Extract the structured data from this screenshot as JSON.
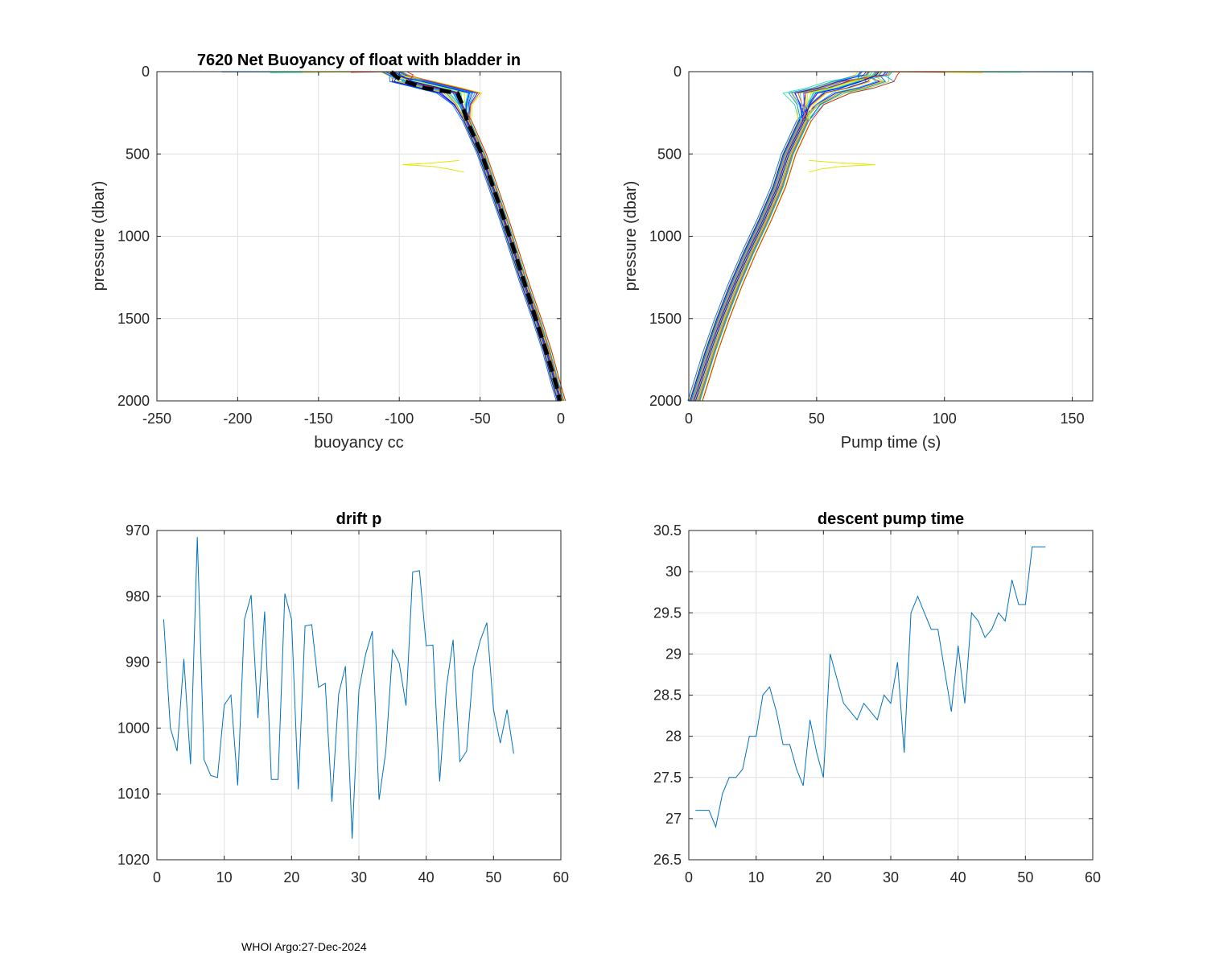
{
  "footer": "WHOI Argo:27-Dec-2024",
  "chart_data": [
    {
      "type": "line",
      "id": "buoy",
      "title": "7620 Net Buoyancy of float with bladder in",
      "xlabel": "buoyancy cc",
      "ylabel": "pressure (dbar)",
      "xlim": [
        -250,
        0
      ],
      "ylim": [
        0,
        2000
      ],
      "y_reversed": true,
      "xticks": [
        -250,
        -200,
        -150,
        -100,
        -50,
        0
      ],
      "xtick_labels": [
        "-250",
        "-200",
        "-150",
        "-100",
        "-50",
        "0"
      ],
      "yticks": [
        0,
        500,
        1000,
        1500,
        2000
      ],
      "ytick_labels": [
        "0",
        "500",
        "1000",
        "1500",
        "2000"
      ],
      "grid": true,
      "profile_colors": [
        "#0000ff",
        "#0a1eff",
        "#1446ff",
        "#0066ff",
        "#0090ff",
        "#00b4ff",
        "#00d2e6",
        "#28e0a0",
        "#78e650",
        "#c8f000",
        "#ffd200",
        "#ff9600",
        "#ff5000",
        "#e61e00"
      ],
      "base_profile": {
        "p": [
          0,
          20,
          60,
          100,
          130,
          200,
          300,
          500,
          700,
          900,
          1100,
          1300,
          1500,
          1700,
          1900,
          2000
        ],
        "b": [
          -105,
          -101,
          -92,
          -75,
          -63,
          -61,
          -58,
          -49,
          -42,
          -35,
          -28.5,
          -22,
          -15,
          -8.5,
          -3,
          0
        ]
      },
      "mean_profile": {
        "name": "mean",
        "color": "#000000",
        "style": "dashed",
        "p": [
          0,
          30,
          60,
          100,
          130,
          200,
          300,
          500,
          700,
          900,
          1100,
          1300,
          1500,
          1700,
          1900,
          2000
        ],
        "b": [
          -105,
          -102,
          -96,
          -84,
          -64,
          -61,
          -58,
          -49,
          -42,
          -35,
          -28.5,
          -22,
          -15.5,
          -9,
          -3,
          -0.5
        ]
      },
      "surface_spikes": [
        {
          "p": 2,
          "b": -210
        },
        {
          "p": 6,
          "b": -180
        },
        {
          "p": 3,
          "b": -160
        },
        {
          "p": 4,
          "b": -130
        }
      ],
      "yellow_outlier": {
        "color": "#e6e600",
        "p": [
          540,
          555,
          565,
          575,
          590,
          610
        ],
        "b": [
          -63,
          -80,
          -98,
          -80,
          -70,
          -60
        ]
      }
    },
    {
      "type": "line",
      "id": "pump",
      "title": "",
      "xlabel": "Pump time (s)",
      "ylabel": "pressure (dbar)",
      "xlim": [
        0,
        158
      ],
      "ylim": [
        0,
        2000
      ],
      "y_reversed": true,
      "xticks": [
        0,
        50,
        100,
        150
      ],
      "xtick_labels": [
        "0",
        "50",
        "100",
        "150"
      ],
      "yticks": [
        0,
        500,
        1000,
        1500,
        2000
      ],
      "ytick_labels": [
        "0",
        "500",
        "1000",
        "1500",
        "2000"
      ],
      "grid": true,
      "base_profile": {
        "p": [
          0,
          20,
          60,
          100,
          130,
          200,
          300,
          500,
          700,
          900,
          1100,
          1300,
          1500,
          1700,
          1900,
          2000
        ],
        "t": [
          73,
          72,
          67,
          59,
          50,
          47,
          45,
          39,
          35,
          29.5,
          23.5,
          18,
          13,
          8.5,
          4.5,
          2.5
        ]
      },
      "surface_spikes": [
        {
          "p": 2,
          "t": 158
        },
        {
          "p": 4,
          "t": 130
        },
        {
          "p": 6,
          "t": 115
        },
        {
          "p": 3,
          "t": 100
        }
      ],
      "yellow_outlier": {
        "color": "#e6e600",
        "p": [
          540,
          555,
          565,
          575,
          590,
          610
        ],
        "t": [
          47,
          60,
          73,
          60,
          52,
          47
        ]
      }
    },
    {
      "type": "line",
      "id": "drift",
      "title": "drift p",
      "xlabel": "",
      "ylabel": "",
      "xlim": [
        0,
        60
      ],
      "ylim": [
        970,
        1020
      ],
      "y_reversed": true,
      "xticks": [
        0,
        10,
        20,
        30,
        40,
        50,
        60
      ],
      "xtick_labels": [
        "0",
        "10",
        "20",
        "30",
        "40",
        "50",
        "60"
      ],
      "yticks": [
        970,
        980,
        990,
        1000,
        1010,
        1020
      ],
      "ytick_labels": [
        "970",
        "980",
        "990",
        "1000",
        "1010",
        "1020"
      ],
      "grid": true,
      "series": [
        {
          "name": "drift p",
          "color": "#0072bd",
          "x": [
            1,
            2,
            3,
            4,
            5,
            6,
            7,
            8,
            9,
            10,
            11,
            12,
            13,
            14,
            15,
            16,
            17,
            18,
            19,
            20,
            21,
            22,
            23,
            24,
            25,
            26,
            27,
            28,
            29,
            30,
            31,
            32,
            33,
            34,
            35,
            36,
            37,
            38,
            39,
            40,
            41,
            42,
            43,
            44,
            45,
            46,
            47,
            48,
            49,
            50,
            51,
            52,
            53
          ],
          "y": [
            983.5,
            1000,
            1003.5,
            989.5,
            1005.5,
            971,
            1004.8,
            1007.2,
            1007.5,
            996.5,
            995,
            1008.7,
            983.5,
            979.8,
            998.5,
            982.3,
            1007.8,
            1007.8,
            979.6,
            983.5,
            1009.3,
            984.5,
            984.3,
            993.8,
            993.2,
            1011.2,
            994.8,
            990.6,
            1016.8,
            994.3,
            988.8,
            985.3,
            1010.9,
            1003.5,
            988.1,
            990.2,
            996.6,
            976.3,
            976.1,
            987.5,
            987.4,
            1008.1,
            993.8,
            986.6,
            1005.1,
            1003.5,
            990.9,
            986.8,
            984,
            997.2,
            1002.3,
            997.2,
            1003.9
          ]
        }
      ]
    },
    {
      "type": "line",
      "id": "descent",
      "title": "descent pump time",
      "xlabel": "",
      "ylabel": "",
      "xlim": [
        0,
        60
      ],
      "ylim": [
        26.5,
        30.5
      ],
      "y_reversed": false,
      "xticks": [
        0,
        10,
        20,
        30,
        40,
        50,
        60
      ],
      "xtick_labels": [
        "0",
        "10",
        "20",
        "30",
        "40",
        "50",
        "60"
      ],
      "yticks": [
        26.5,
        27,
        27.5,
        28,
        28.5,
        29,
        29.5,
        30,
        30.5
      ],
      "ytick_labels": [
        "26.5",
        "27",
        "27.5",
        "28",
        "28.5",
        "29",
        "29.5",
        "30",
        "30.5"
      ],
      "grid": true,
      "series": [
        {
          "name": "descent pump time",
          "color": "#0072bd",
          "x": [
            1,
            2,
            3,
            4,
            5,
            6,
            7,
            8,
            9,
            10,
            11,
            12,
            13,
            14,
            15,
            16,
            17,
            18,
            19,
            20,
            21,
            22,
            23,
            24,
            25,
            26,
            27,
            28,
            29,
            30,
            31,
            32,
            33,
            34,
            35,
            36,
            37,
            38,
            39,
            40,
            41,
            42,
            43,
            44,
            45,
            46,
            47,
            48,
            49,
            50,
            51,
            52,
            53
          ],
          "y": [
            27.1,
            27.1,
            27.1,
            26.9,
            27.3,
            27.5,
            27.5,
            27.6,
            28,
            28,
            28.5,
            28.6,
            28.3,
            27.9,
            27.9,
            27.6,
            27.4,
            28.2,
            27.8,
            27.5,
            29,
            28.7,
            28.4,
            28.3,
            28.2,
            28.4,
            28.3,
            28.2,
            28.5,
            28.4,
            28.9,
            27.8,
            29.5,
            29.7,
            29.5,
            29.3,
            29.3,
            28.8,
            28.3,
            29.1,
            28.4,
            29.5,
            29.4,
            29.2,
            29.3,
            29.5,
            29.4,
            29.9,
            29.6,
            29.6,
            30.3,
            30.3,
            30.3
          ]
        }
      ]
    }
  ]
}
